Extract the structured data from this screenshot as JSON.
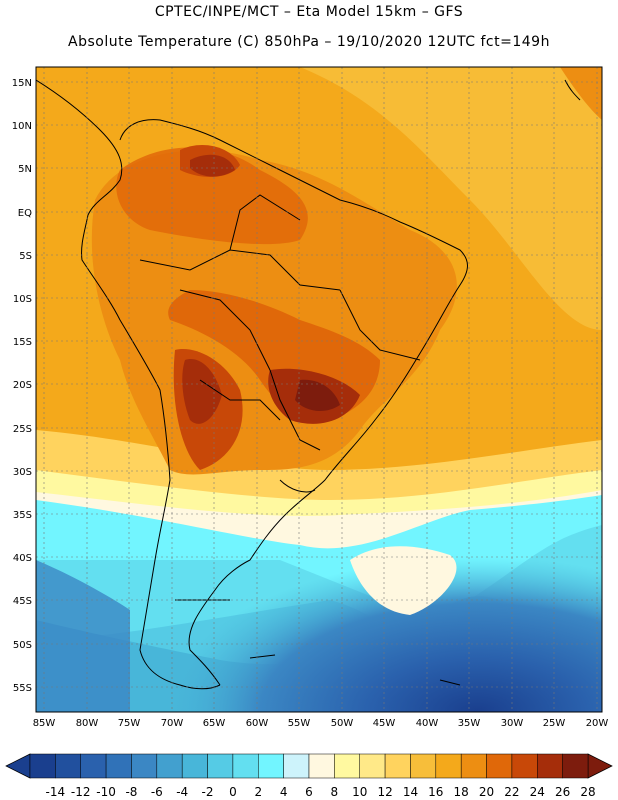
{
  "title_line1": "CPTEC/INPE/MCT –  Eta Model 15km – GFS",
  "title_line2": "Absolute Temperature (C) 850hPa – 19/10/2020 12UTC fct=149h",
  "map": {
    "lat_labels": [
      "15N",
      "10N",
      "5N",
      "EQ",
      "5S",
      "10S",
      "15S",
      "20S",
      "25S",
      "30S",
      "35S",
      "40S",
      "45S",
      "50S",
      "55S"
    ],
    "lon_labels": [
      "85W",
      "80W",
      "75W",
      "70W",
      "65W",
      "60W",
      "55W",
      "50W",
      "45W",
      "40W",
      "35W",
      "30W",
      "25W",
      "20W"
    ],
    "lat_range": [
      58,
      -16
    ],
    "lon_range": [
      -86,
      -19
    ]
  },
  "colorbar": {
    "ticks": [
      "-14",
      "-12",
      "-10",
      "-8",
      "-6",
      "-4",
      "-2",
      "0",
      "2",
      "4",
      "6",
      "8",
      "10",
      "12",
      "14",
      "16",
      "18",
      "20",
      "22",
      "24",
      "26",
      "28"
    ],
    "colors": [
      "#1a3f8e",
      "#21509e",
      "#2a61ad",
      "#3072b8",
      "#3b87c4",
      "#42a0cf",
      "#48b6d9",
      "#55cbe5",
      "#63dff0",
      "#72f5ff",
      "#cdf3fb",
      "#fff8e0",
      "#fff9a0",
      "#ffe988",
      "#ffd35e",
      "#f7be3a",
      "#f4a91b",
      "#ed8e12",
      "#e06809",
      "#c84808",
      "#a52d0a",
      "#7d1c0d"
    ]
  }
}
